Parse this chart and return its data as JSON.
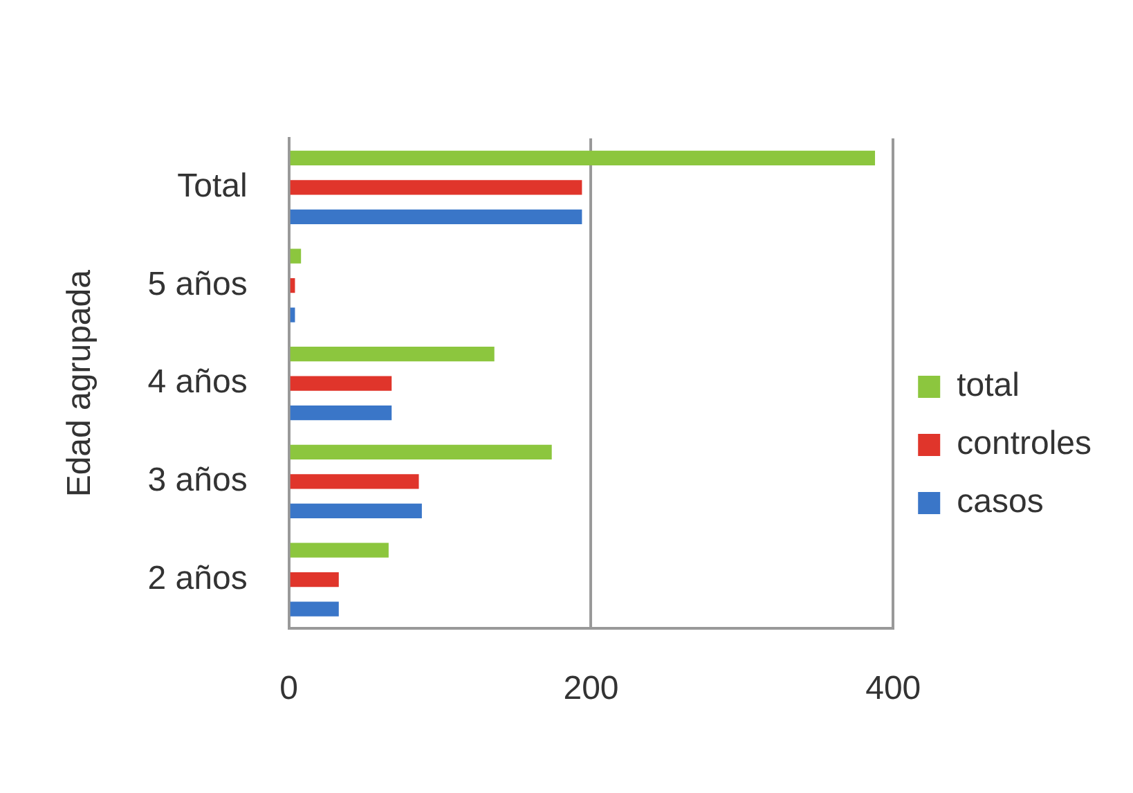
{
  "chart_data": {
    "type": "bar",
    "orientation": "horizontal",
    "ylabel": "Edad agrupada",
    "categories": [
      "Total",
      "5 años",
      "4 años",
      "3 años",
      "2 años"
    ],
    "series": [
      {
        "name": "total",
        "color": "#8cc63e",
        "values": [
          388,
          8,
          136,
          174,
          66
        ]
      },
      {
        "name": "controles",
        "color": "#e0352b",
        "values": [
          194,
          4,
          68,
          86,
          33
        ]
      },
      {
        "name": "casos",
        "color": "#3a76c8",
        "values": [
          194,
          4,
          68,
          88,
          33
        ]
      }
    ],
    "xlim": [
      0,
      400
    ],
    "xticks": [
      0,
      200,
      400
    ],
    "grid": "x",
    "legend": "right"
  }
}
